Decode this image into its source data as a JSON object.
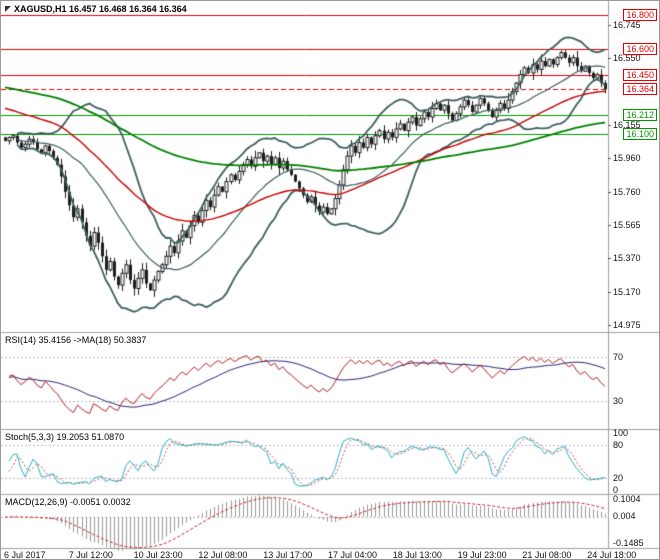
{
  "colors": {
    "bg": "#ffffff",
    "border": "#a0a0a0",
    "axis_text": "#111111",
    "candle": "#202020",
    "bull_fill": "#ffffff",
    "bollinger": "#3f6060",
    "ma_fast": "#cc0000",
    "ma_slow": "#008000",
    "level_red": "#e60000",
    "level_green": "#009900",
    "rsi": "#b22222",
    "rsi_ma": "#242478",
    "stoch_k": "#2ab2c8",
    "stoch_d": "#cc5555",
    "macd_hist": "#9a9a9a",
    "macd_signal": "#cc2222",
    "level_dotted": "#bdbdbd"
  },
  "header": {
    "title": "XAGUSD,H1 16.457 16.468 16.364 16.364"
  },
  "panes": {
    "rsi_label": "RSI(14) 35.4156 ->MA(18) 50.3837",
    "stoch_label": "Stoch(5,3,3) 19.2053 51.0870",
    "macd_label": "MACD(12,26,9) -0.0051 0.0032"
  },
  "chart_data": [
    {
      "type": "candlestick",
      "symbol": "XAGUSD",
      "timeframe": "H1",
      "ohlc_header": {
        "open": "16.457",
        "high": "16.468",
        "low": "16.364",
        "close": "16.364"
      },
      "ylim": [
        14.94,
        16.86
      ],
      "y_ticks": [
        {
          "label": "16.745",
          "value": 16.745
        },
        {
          "label": "16.550",
          "value": 16.55
        },
        {
          "label": "16.155",
          "value": 16.155
        },
        {
          "label": "15.960",
          "value": 15.96
        },
        {
          "label": "15.760",
          "value": 15.76
        },
        {
          "label": "15.565",
          "value": 15.565
        },
        {
          "label": "15.370",
          "value": 15.37
        },
        {
          "label": "15.170",
          "value": 15.17
        },
        {
          "label": "14.975",
          "value": 14.975
        }
      ],
      "current_price": {
        "label": "16.364",
        "value": 16.364,
        "color": "#e60000"
      },
      "h_lines": [
        {
          "label": "16.800",
          "value": 16.8,
          "color": "#e60000"
        },
        {
          "label": "16.600",
          "value": 16.6,
          "color": "#e60000"
        },
        {
          "label": "16.450",
          "value": 16.45,
          "color": "#e60000"
        },
        {
          "label": "16.212",
          "value": 16.212,
          "color": "#009900"
        },
        {
          "label": "16.100",
          "value": 16.1,
          "color": "#009900"
        }
      ],
      "x_labels": [
        "6 Jul 2017",
        "7 Jul 12:00",
        "10 Jul 23:00",
        "12 Jul 08:00",
        "13 Jul 17:00",
        "17 Jul 04:00",
        "18 Jul 13:00",
        "19 Jul 23:00",
        "21 Jul 08:00",
        "24 Jul 18:00"
      ],
      "overlays": {
        "bollinger": {
          "period": 20,
          "deviation": 2
        },
        "ema_fast": {
          "period": 48,
          "seed": 16.26
        },
        "ema_slow": {
          "period": 130,
          "seed": 16.38
        }
      },
      "closes": [
        16.06,
        16.08,
        16.09,
        16.05,
        16.02,
        16.04,
        16.07,
        16.05,
        16.01,
        15.99,
        16.03,
        16.0,
        15.96,
        15.92,
        15.85,
        15.76,
        15.68,
        15.61,
        15.66,
        15.58,
        15.5,
        15.44,
        15.52,
        15.46,
        15.38,
        15.3,
        15.35,
        15.26,
        15.21,
        15.28,
        15.33,
        15.24,
        15.19,
        15.25,
        15.3,
        15.22,
        15.18,
        15.24,
        15.29,
        15.33,
        15.38,
        15.44,
        15.4,
        15.47,
        15.53,
        15.49,
        15.56,
        15.62,
        15.58,
        15.65,
        15.71,
        15.67,
        15.74,
        15.79,
        15.76,
        15.82,
        15.86,
        15.83,
        15.88,
        15.92,
        15.95,
        15.91,
        15.96,
        15.99,
        15.94,
        15.97,
        15.92,
        15.96,
        15.9,
        15.94,
        15.89,
        15.86,
        15.82,
        15.78,
        15.74,
        15.7,
        15.73,
        15.68,
        15.64,
        15.67,
        15.63,
        15.66,
        15.72,
        15.8,
        15.89,
        15.97,
        16.03,
        15.99,
        16.05,
        16.02,
        16.08,
        16.04,
        16.09,
        16.12,
        16.07,
        16.11,
        16.08,
        16.13,
        16.16,
        16.12,
        16.17,
        16.2,
        16.15,
        16.19,
        16.23,
        16.2,
        16.25,
        16.28,
        16.24,
        16.27,
        16.22,
        16.18,
        16.22,
        16.26,
        16.3,
        16.27,
        16.23,
        16.27,
        16.31,
        16.28,
        16.24,
        16.2,
        16.24,
        16.28,
        16.25,
        16.3,
        16.35,
        16.4,
        16.45,
        16.49,
        16.46,
        16.51,
        16.48,
        16.53,
        16.5,
        16.54,
        16.51,
        16.55,
        16.58,
        16.55,
        16.52,
        16.55,
        16.5,
        16.47,
        16.5,
        16.46,
        16.43,
        16.45,
        16.4,
        16.364
      ]
    },
    {
      "type": "line",
      "name": "RSI",
      "period": 14,
      "ma_period": 18,
      "value": "35.4156",
      "ma_value": "50.3837",
      "ylim": [
        5,
        92
      ],
      "levels": [
        70,
        30
      ],
      "y_ticks": [
        {
          "label": "70",
          "value": 70
        },
        {
          "label": "30",
          "value": 30
        }
      ]
    },
    {
      "type": "line",
      "name": "Stochastic",
      "params": [
        5,
        3,
        3
      ],
      "k_value": "19.2053",
      "d_value": "51.0870",
      "ylim": [
        -6,
        106
      ],
      "levels": [
        80,
        20
      ],
      "y_ticks": [
        {
          "label": "100",
          "value": 100
        },
        {
          "label": "80",
          "value": 80
        },
        {
          "label": "20",
          "value": 20
        },
        {
          "label": "0",
          "value": 0
        }
      ]
    },
    {
      "type": "histogram",
      "name": "MACD",
      "params": [
        12,
        26,
        9
      ],
      "macd_value": "-0.0051",
      "signal_value": "0.0032",
      "ylim": [
        -0.175,
        0.125
      ],
      "y_ticks": [
        {
          "label": "0.1004",
          "value": 0.1004
        },
        {
          "label": "0.004",
          "value": 0.004
        },
        {
          "label": "-0.1485",
          "value": -0.1485
        }
      ]
    }
  ]
}
